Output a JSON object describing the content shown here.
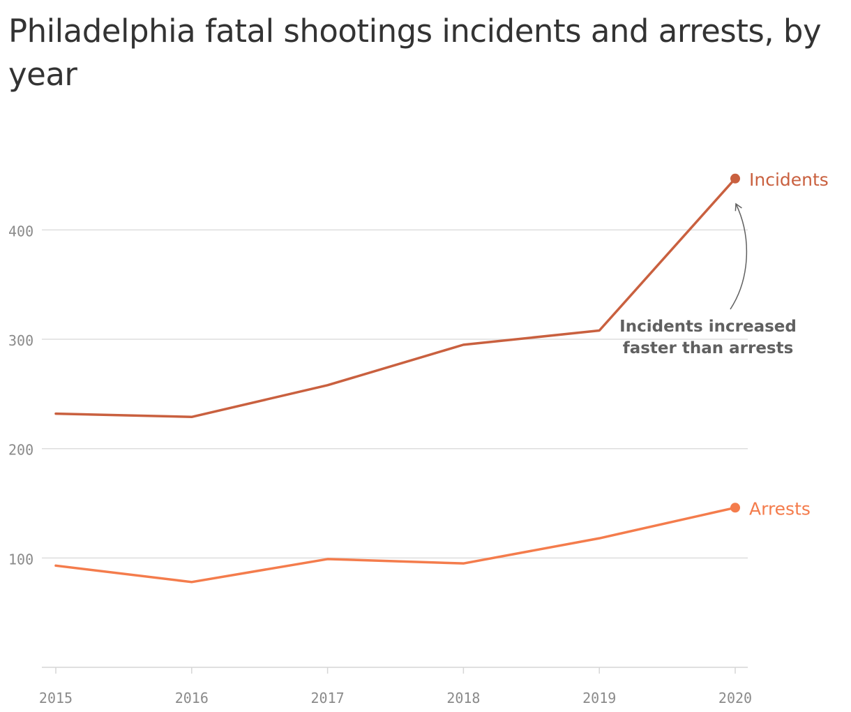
{
  "chart_data": {
    "type": "line",
    "title": "Philadelphia fatal shootings incidents and arrests, by year",
    "xlabel": "",
    "ylabel": "",
    "categories": [
      "2015",
      "2016",
      "2017",
      "2018",
      "2019",
      "2020"
    ],
    "y_ticks": [
      "100",
      "200",
      "300",
      "400"
    ],
    "ylim": [
      0,
      490
    ],
    "grid": true,
    "series": [
      {
        "name": "Incidents",
        "color": "#c9603f",
        "values": [
          232,
          229,
          258,
          295,
          308,
          447
        ]
      },
      {
        "name": "Arrests",
        "color": "#f47c4c",
        "values": [
          93,
          78,
          99,
          95,
          118,
          146
        ]
      }
    ],
    "annotation": {
      "lines": [
        "Incidents increased",
        "faster than arrests"
      ]
    }
  }
}
